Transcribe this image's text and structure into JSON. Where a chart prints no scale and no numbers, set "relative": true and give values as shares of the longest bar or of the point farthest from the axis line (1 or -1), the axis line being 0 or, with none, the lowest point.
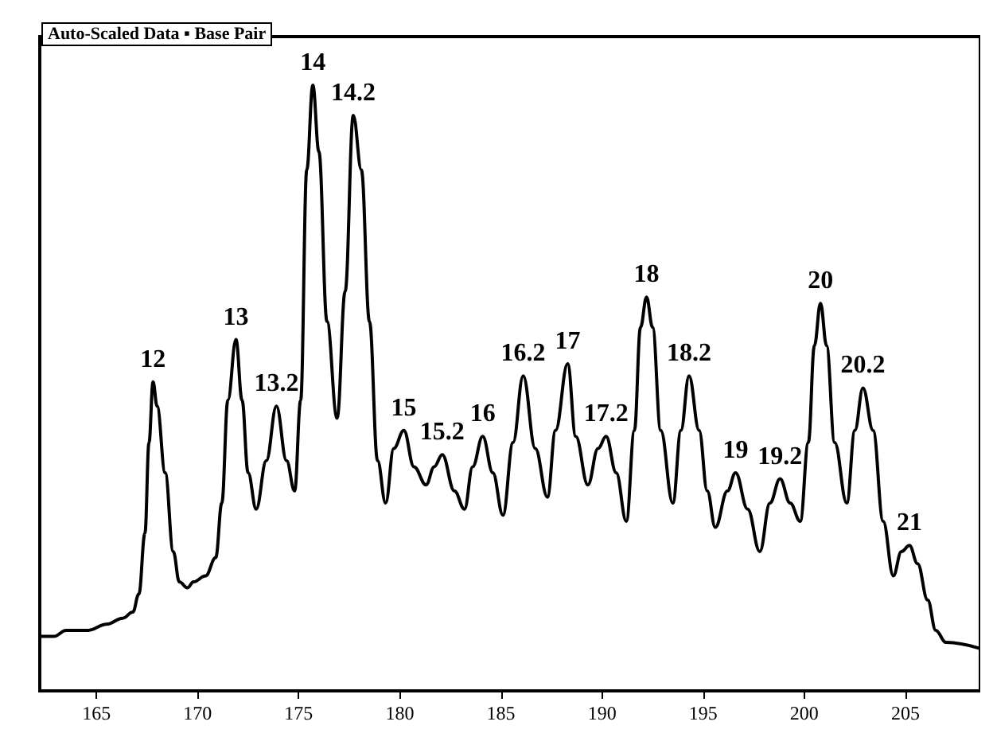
{
  "chart_data": {
    "type": "line",
    "title": "Auto-Scaled Data ▪ Base Pair",
    "relative": true,
    "xlim": [
      162.2,
      208.7
    ],
    "xticks": [
      165,
      170,
      175,
      180,
      185,
      190,
      195,
      200,
      205
    ],
    "grid": false,
    "marker": "none",
    "line_style": "solid",
    "tick_labels": "x",
    "series": [
      {
        "color": "#000000",
        "x": [
          162.2,
          162.9,
          163.5,
          164.6,
          165.5,
          166.3,
          166.8,
          167.1,
          167.4,
          167.6,
          167.8,
          168.0,
          168.4,
          168.8,
          169.1,
          169.5,
          169.8,
          170.4,
          170.9,
          171.2,
          171.5,
          171.9,
          172.2,
          172.5,
          172.9,
          173.4,
          173.9,
          174.4,
          174.8,
          175.1,
          175.4,
          175.7,
          176.0,
          176.4,
          176.9,
          177.3,
          177.7,
          178.1,
          178.5,
          178.9,
          179.3,
          179.7,
          180.2,
          180.7,
          181.3,
          181.7,
          182.1,
          182.7,
          183.2,
          183.6,
          184.1,
          184.6,
          185.1,
          185.6,
          186.1,
          186.7,
          187.3,
          187.7,
          188.3,
          188.7,
          189.3,
          189.8,
          190.2,
          190.7,
          191.2,
          191.6,
          191.9,
          192.2,
          192.5,
          192.9,
          193.5,
          193.9,
          194.3,
          194.8,
          195.2,
          195.6,
          196.2,
          196.6,
          197.2,
          197.8,
          198.3,
          198.8,
          199.3,
          199.8,
          200.2,
          200.5,
          200.8,
          201.1,
          201.5,
          202.1,
          202.5,
          202.9,
          203.4,
          203.9,
          204.4,
          204.8,
          205.2,
          205.6,
          206.1,
          206.5,
          207.0,
          208.7
        ],
        "values": [
          0.09,
          0.09,
          0.1,
          0.1,
          0.11,
          0.12,
          0.13,
          0.16,
          0.26,
          0.41,
          0.51,
          0.47,
          0.36,
          0.23,
          0.18,
          0.17,
          0.18,
          0.19,
          0.22,
          0.31,
          0.48,
          0.58,
          0.48,
          0.36,
          0.3,
          0.38,
          0.47,
          0.38,
          0.33,
          0.48,
          0.86,
          1,
          0.89,
          0.61,
          0.45,
          0.66,
          0.95,
          0.86,
          0.61,
          0.38,
          0.31,
          0.4,
          0.43,
          0.37,
          0.34,
          0.37,
          0.39,
          0.33,
          0.3,
          0.37,
          0.42,
          0.36,
          0.29,
          0.41,
          0.52,
          0.4,
          0.32,
          0.43,
          0.54,
          0.42,
          0.34,
          0.4,
          0.42,
          0.36,
          0.28,
          0.43,
          0.6,
          0.65,
          0.6,
          0.43,
          0.31,
          0.43,
          0.52,
          0.43,
          0.33,
          0.27,
          0.33,
          0.36,
          0.3,
          0.23,
          0.31,
          0.35,
          0.31,
          0.28,
          0.41,
          0.57,
          0.64,
          0.57,
          0.41,
          0.31,
          0.43,
          0.5,
          0.43,
          0.28,
          0.19,
          0.23,
          0.24,
          0.21,
          0.15,
          0.1,
          0.08,
          0.07
        ]
      }
    ],
    "annotations": [
      {
        "text": "12",
        "x": 167.8,
        "y": 0.51
      },
      {
        "text": "13",
        "x": 171.9,
        "y": 0.58
      },
      {
        "text": "13.2",
        "x": 173.9,
        "y": 0.47
      },
      {
        "text": "14",
        "x": 175.7,
        "y": 1
      },
      {
        "text": "14.2",
        "x": 177.7,
        "y": 0.95
      },
      {
        "text": "15",
        "x": 180.2,
        "y": 0.43
      },
      {
        "text": "15.2",
        "x": 182.1,
        "y": 0.39
      },
      {
        "text": "16",
        "x": 184.1,
        "y": 0.42
      },
      {
        "text": "16.2",
        "x": 186.1,
        "y": 0.52
      },
      {
        "text": "17",
        "x": 188.3,
        "y": 0.54
      },
      {
        "text": "17.2",
        "x": 190.2,
        "y": 0.42
      },
      {
        "text": "18",
        "x": 192.2,
        "y": 0.65
      },
      {
        "text": "18.2",
        "x": 194.3,
        "y": 0.52
      },
      {
        "text": "19",
        "x": 196.6,
        "y": 0.36
      },
      {
        "text": "19.2",
        "x": 198.8,
        "y": 0.35
      },
      {
        "text": "20",
        "x": 200.8,
        "y": 0.64
      },
      {
        "text": "20.2",
        "x": 202.9,
        "y": 0.5
      },
      {
        "text": "21",
        "x": 205.2,
        "y": 0.24
      }
    ]
  }
}
